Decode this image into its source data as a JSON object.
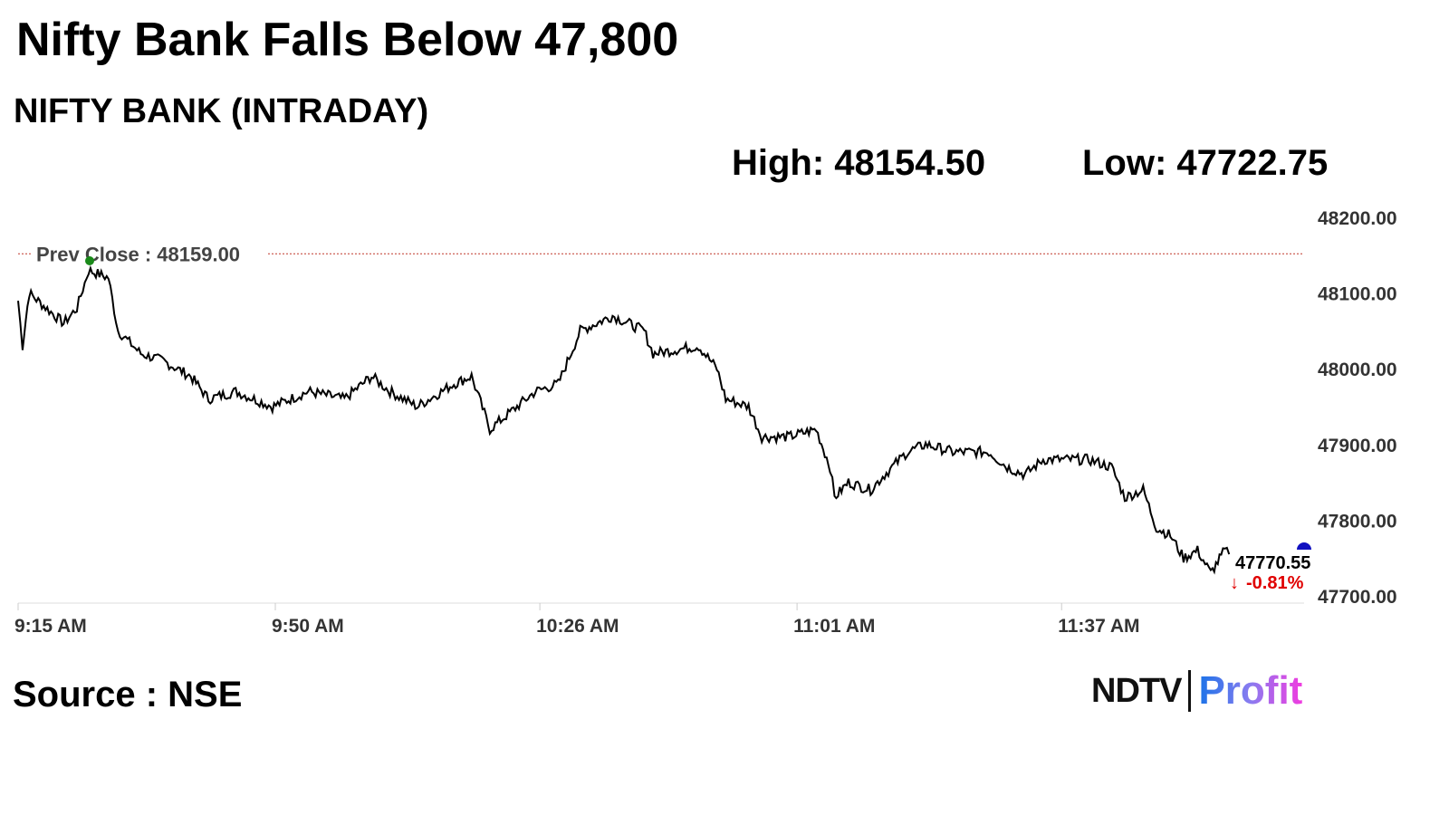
{
  "title": "Nifty Bank Falls Below 47,800",
  "subtitle": "NIFTY BANK (INTRADAY)",
  "high": "High: 48154.50",
  "low": "Low: 47722.75",
  "source": "Source : NSE",
  "logo": {
    "ndtv": "NDTV",
    "profit": "Profit"
  },
  "chart_data": {
    "type": "line",
    "title": "NIFTY BANK (INTRADAY)",
    "xlabel": "",
    "ylabel": "",
    "x_unit": "minutes after 9:15 AM",
    "xlim": [
      0,
      175
    ],
    "ylim": [
      47700,
      48200
    ],
    "yticks": [
      "48200.00",
      "48100.00",
      "48000.00",
      "47900.00",
      "47800.00",
      "47700.00"
    ],
    "ytick_values": [
      48200,
      48100,
      48000,
      47900,
      47800,
      47700
    ],
    "xticks": [
      {
        "label": "9:15 AM",
        "value": 0
      },
      {
        "label": "9:50 AM",
        "value": 35
      },
      {
        "label": "10:26 AM",
        "value": 71
      },
      {
        "label": "11:01 AM",
        "value": 106
      },
      {
        "label": "11:37 AM",
        "value": 142
      }
    ],
    "prev_close": {
      "value": 48159,
      "label": "Prev Close : 48159.00"
    },
    "last": {
      "value": "47770.55",
      "change": "-0.81%"
    },
    "colors": {
      "line": "#000000",
      "prev_close": "#c0392b",
      "down": "#e00000",
      "high_marker": "#1a8a1a",
      "live_marker": "#1010c0"
    },
    "series": [
      {
        "name": "NIFTY BANK",
        "points": [
          [
            0,
            48090
          ],
          [
            0.6,
            48030
          ],
          [
            1.5,
            48100
          ],
          [
            6.2,
            48060
          ],
          [
            8,
            48080
          ],
          [
            9.6,
            48130
          ],
          [
            12.3,
            48120
          ],
          [
            13.6,
            48050
          ],
          [
            16.7,
            48020
          ],
          [
            19.8,
            48010
          ],
          [
            23.5,
            47990
          ],
          [
            25.9,
            47960
          ],
          [
            29.6,
            47970
          ],
          [
            34.6,
            47950
          ],
          [
            39.5,
            47970
          ],
          [
            44.4,
            47960
          ],
          [
            48.1,
            47990
          ],
          [
            50.6,
            47970
          ],
          [
            54.3,
            47950
          ],
          [
            59.3,
            47980
          ],
          [
            61.7,
            47990
          ],
          [
            64.2,
            47920
          ],
          [
            67.9,
            47950
          ],
          [
            70.4,
            47970
          ],
          [
            73.5,
            47980
          ],
          [
            76.5,
            48050
          ],
          [
            80.9,
            48070
          ],
          [
            85.2,
            48050
          ],
          [
            86.4,
            48020
          ],
          [
            92.6,
            48030
          ],
          [
            95.1,
            48000
          ],
          [
            96.3,
            47960
          ],
          [
            99.4,
            47950
          ],
          [
            101.2,
            47910
          ],
          [
            104.9,
            47910
          ],
          [
            108.6,
            47920
          ],
          [
            110.5,
            47870
          ],
          [
            111.1,
            47830
          ],
          [
            113,
            47850
          ],
          [
            116,
            47840
          ],
          [
            117.9,
            47860
          ],
          [
            121,
            47890
          ],
          [
            123.5,
            47900
          ],
          [
            127.2,
            47890
          ],
          [
            132.1,
            47890
          ],
          [
            134.6,
            47870
          ],
          [
            137,
            47860
          ],
          [
            139.5,
            47880
          ],
          [
            145.7,
            47880
          ],
          [
            148.8,
            47870
          ],
          [
            150.6,
            47830
          ],
          [
            153.1,
            47840
          ],
          [
            154.9,
            47790
          ],
          [
            156.8,
            47780
          ],
          [
            158.6,
            47750
          ],
          [
            160.5,
            47760
          ],
          [
            162.3,
            47730
          ],
          [
            164.2,
            47760
          ],
          [
            164.8,
            47755
          ]
        ]
      }
    ]
  }
}
